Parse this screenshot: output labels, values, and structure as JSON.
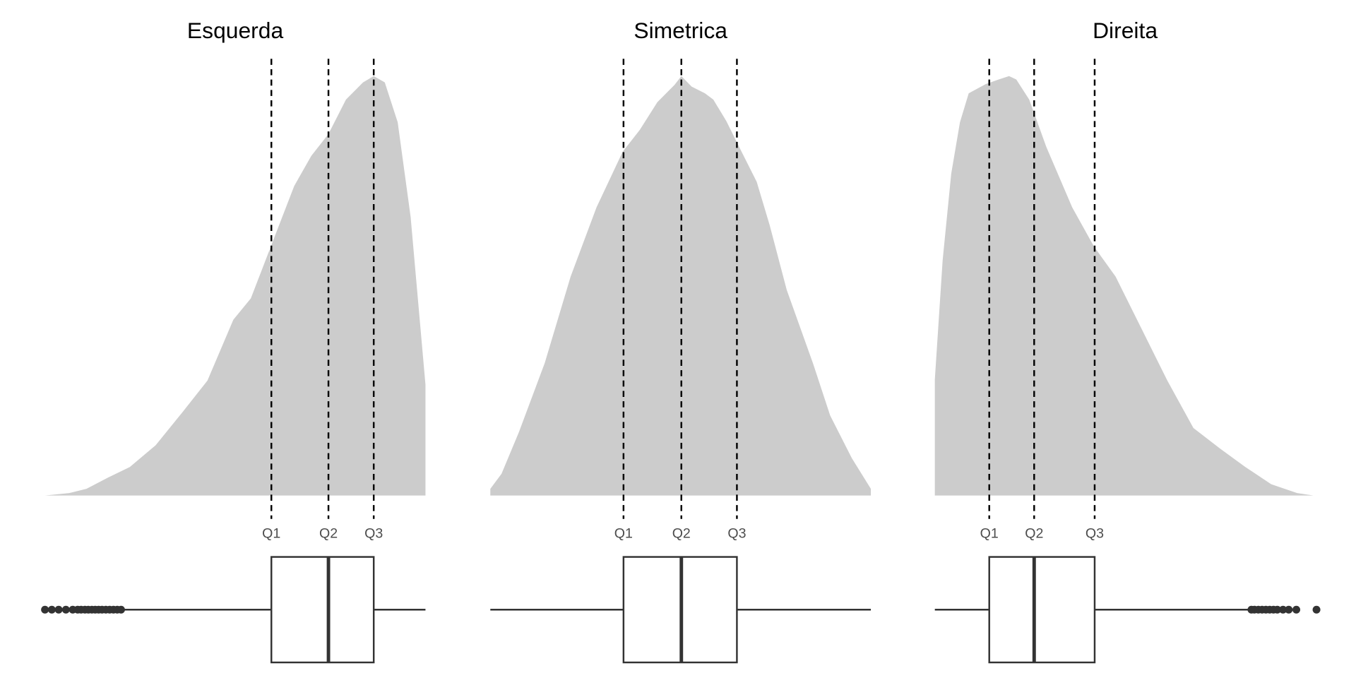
{
  "chart_data": [
    {
      "type": "density+boxplot",
      "title": "Esquerda",
      "quartile_labels": [
        "Q1",
        "Q2",
        "Q3"
      ],
      "density": {
        "x": [
          0,
          6.4,
          10.9,
          16.6,
          22.3,
          29.1,
          35.9,
          42.7,
          49.5,
          54.1,
          59.8,
          65.5,
          70,
          74.5,
          79.1,
          83.6,
          86.4,
          89.3,
          92.7,
          96.1,
          100
        ],
        "y": [
          0,
          0.006,
          0.016,
          0.043,
          0.068,
          0.12,
          0.196,
          0.274,
          0.419,
          0.47,
          0.604,
          0.738,
          0.81,
          0.862,
          0.944,
          0.985,
          1.0,
          0.985,
          0.89,
          0.664,
          0.264
        ]
      },
      "quartiles": [
        59.5,
        74.5,
        86.4
      ],
      "whiskers": [
        20,
        100
      ],
      "outliers": [
        0,
        1.8,
        3.6,
        5.5,
        7.3,
        8.6,
        9.5,
        10.5,
        11.4,
        12.3,
        13.2,
        14.1,
        15,
        16,
        17,
        18,
        19,
        20
      ]
    },
    {
      "type": "density+boxplot",
      "title": "Simetrica",
      "quartile_labels": [
        "Q1",
        "Q2",
        "Q3"
      ],
      "density": {
        "x": [
          0,
          2.95,
          7.5,
          14.3,
          21.1,
          27.9,
          34.8,
          39.3,
          43.9,
          48.4,
          50.2,
          52.9,
          56.4,
          58.6,
          62,
          65.4,
          70,
          73.4,
          77.9,
          84.8,
          89.3,
          95,
          100
        ],
        "y": [
          0.016,
          0.052,
          0.151,
          0.316,
          0.522,
          0.687,
          0.82,
          0.872,
          0.938,
          0.979,
          1.0,
          0.975,
          0.959,
          0.944,
          0.893,
          0.831,
          0.748,
          0.645,
          0.49,
          0.315,
          0.191,
          0.089,
          0.016
        ]
      },
      "quartiles": [
        35,
        50.2,
        64.8
      ],
      "whiskers": [
        0,
        100
      ],
      "outliers": []
    },
    {
      "type": "density+boxplot",
      "title": "Direita",
      "quartile_labels": [
        "Q1",
        "Q2",
        "Q3"
      ],
      "density": {
        "x": [
          0,
          2.05,
          4.3,
          6.6,
          8.9,
          13.4,
          16.8,
          19.5,
          21.4,
          24.8,
          29.3,
          36.1,
          41.8,
          47.5,
          54.3,
          61.1,
          67.95,
          74.8,
          81.6,
          88.4,
          95.2,
          99.5
        ],
        "y": [
          0.277,
          0.561,
          0.767,
          0.89,
          0.959,
          0.981,
          0.992,
          1.0,
          0.992,
          0.944,
          0.831,
          0.687,
          0.594,
          0.522,
          0.398,
          0.274,
          0.161,
          0.113,
          0.068,
          0.027,
          0.006,
          0
        ]
      },
      "quartiles": [
        14.3,
        26.1,
        42
      ],
      "whiskers": [
        0,
        83.2
      ],
      "outliers": [
        83.2,
        84,
        85,
        86,
        87,
        88,
        89,
        90,
        91.5,
        93,
        95,
        100.3
      ]
    }
  ],
  "colors": {
    "density_fill": "#cccccc",
    "lines": "#000000",
    "box": "#333333",
    "labels": "#4d4d4d"
  }
}
